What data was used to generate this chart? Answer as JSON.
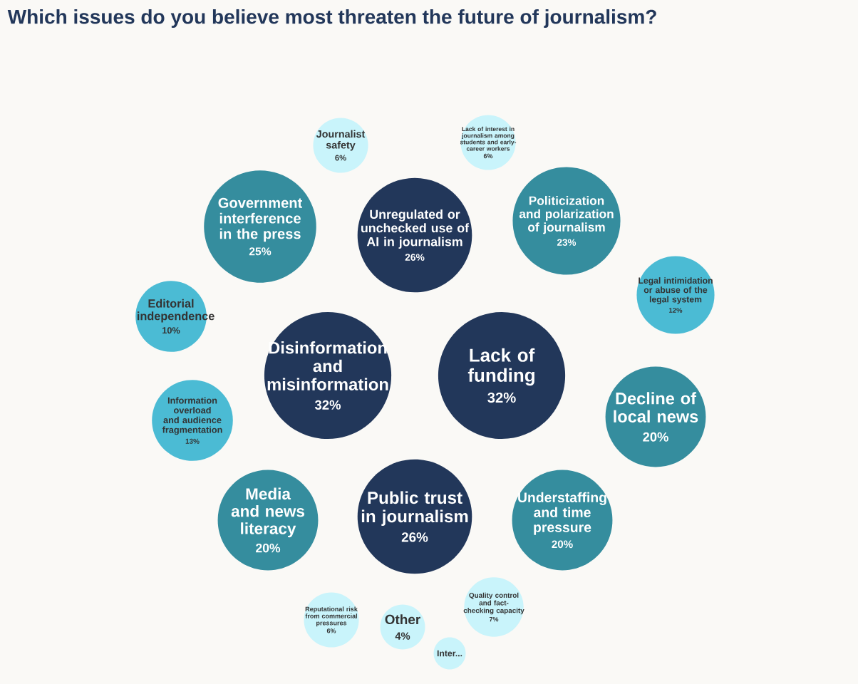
{
  "chart_data": {
    "type": "other",
    "title": "Which issues do you believe most threaten the future of journalism?",
    "categories": [
      "Disinformation and misinformation",
      "Lack of funding",
      "Unregulated or unchecked use of AI in journalism",
      "Public trust in journalism",
      "Government interference in the press",
      "Politicization and polarization of journalism",
      "Decline of local news",
      "Media and news literacy",
      "Understaffing and time pressure",
      "Information overload and audience fragmentation",
      "Legal intimidation or abuse of the legal system",
      "Editorial independence",
      "Quality control and fact-checking capacity",
      "Journalist safety",
      "Lack of interest in journalism among students and early-career workers",
      "Reputational risk from commercial pressures",
      "Other",
      "Inter..."
    ],
    "values": [
      32,
      32,
      26,
      26,
      25,
      23,
      20,
      20,
      20,
      13,
      12,
      10,
      7,
      6,
      6,
      6,
      4,
      null
    ],
    "value_labels": [
      "32%",
      "32%",
      "26%",
      "26%",
      "25%",
      "23%",
      "20%",
      "20%",
      "20%",
      "13%",
      "12%",
      "10%",
      "7%",
      "6%",
      "6%",
      "6%",
      "4%",
      null
    ],
    "colors": [
      "#22375a",
      "#22375a",
      "#22375a",
      "#22375a",
      "#358d9e",
      "#358d9e",
      "#358d9e",
      "#358d9e",
      "#358d9e",
      "#4bbbd4",
      "#4bbbd4",
      "#4bbbd4",
      "#c9f4fb",
      "#c9f4fb",
      "#c9f4fb",
      "#c9f4fb",
      "#c9f4fb",
      "#c9f4fb"
    ]
  }
}
